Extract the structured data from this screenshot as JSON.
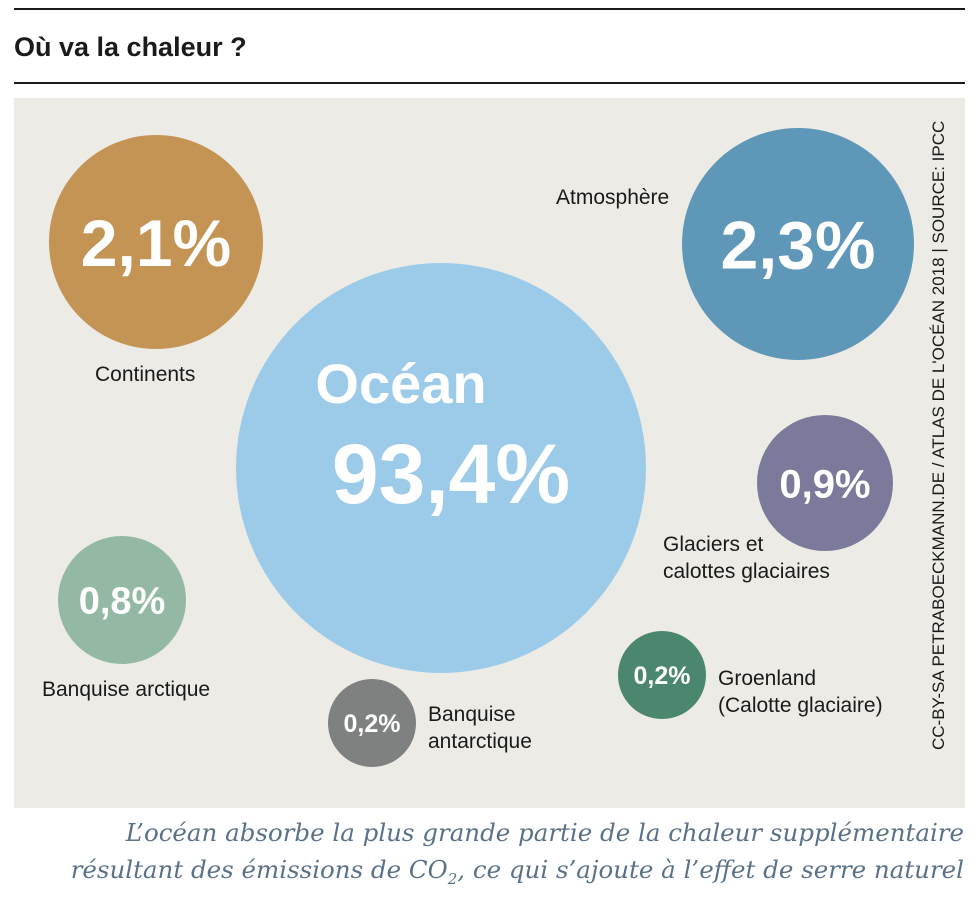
{
  "title": "Où va la chaleur ?",
  "credit": "CC-BY-SA PETRABOECKMANN.DE / ATLAS DE L'OCÉAN 2018 | SOURCE: IPCC",
  "caption": {
    "line1": "L’océan absorbe la plus grande partie de la chaleur supplémentaire",
    "line2_pre": "résultant des émissions de CO",
    "line2_sub": "2",
    "line2_post": ", ce qui s’ajoute à l’effet de serre naturel"
  },
  "chart_data": {
    "type": "bubble",
    "title": "Où va la chaleur ?",
    "unit": "%",
    "items": [
      {
        "label": "Océan",
        "value": 93.4,
        "value_text": "93,4%",
        "color": "#9ccbe9"
      },
      {
        "label": "Atmosphère",
        "value": 2.3,
        "value_text": "2,3%",
        "color": "#5f97b9"
      },
      {
        "label": "Continents",
        "value": 2.1,
        "value_text": "2,1%",
        "color": "#c49454"
      },
      {
        "label": "Glaciers et calottes glaciaires",
        "value": 0.9,
        "value_text": "0,9%",
        "color": "#7b7a9b"
      },
      {
        "label": "Banquise arctique",
        "value": 0.8,
        "value_text": "0,8%",
        "color": "#93b9a4"
      },
      {
        "label": "Banquise antarctique",
        "value": 0.2,
        "value_text": "0,2%",
        "color": "#7f8080"
      },
      {
        "label": "Groenland (Calotte glaciaire)",
        "value": 0.2,
        "value_text": "0,2%",
        "color": "#4b866e"
      }
    ]
  },
  "labels": {
    "atmosphere": "Atmosphère",
    "continents": "Continents",
    "glaciers_l1": "Glaciers et",
    "glaciers_l2": "calottes glaciaires",
    "arctique": "Banquise arctique",
    "antarctique_l1": "Banquise",
    "antarctique_l2": "antarctique",
    "groenland_l1": "Groenland",
    "groenland_l2": "(Calotte glaciaire)"
  }
}
